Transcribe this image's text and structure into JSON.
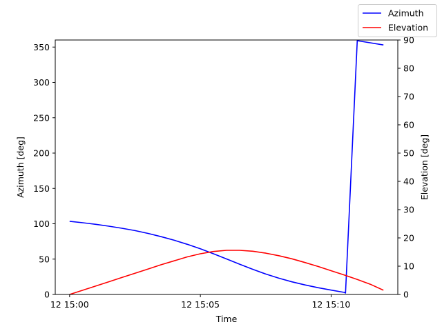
{
  "chart_data": {
    "type": "line",
    "xlabel": "Time",
    "ylabel_left": "Azimuth [deg]",
    "ylabel_right": "Elevation [deg]",
    "x_unit": "minutes after 15:00",
    "x_ticks": [
      {
        "value": 0,
        "label": "12 15:00"
      },
      {
        "value": 5,
        "label": "12 15:05"
      },
      {
        "value": 10,
        "label": "12 15:10"
      }
    ],
    "xlim": [
      -0.55,
      12.55
    ],
    "ylim_left": [
      0,
      360
    ],
    "ylim_right": [
      0,
      90
    ],
    "yticks_left": [
      0,
      50,
      100,
      150,
      200,
      250,
      300,
      350
    ],
    "yticks_right": [
      0,
      10,
      20,
      30,
      40,
      50,
      60,
      70,
      80,
      90
    ],
    "legend_position": "top-right",
    "grid": false,
    "series": [
      {
        "name": "Azimuth",
        "axis": "left",
        "color": "#0000ff",
        "points": [
          [
            0,
            103.5
          ],
          [
            0.5,
            101.5
          ],
          [
            1,
            99.2
          ],
          [
            1.5,
            96.6
          ],
          [
            2,
            93.7
          ],
          [
            2.5,
            90.3
          ],
          [
            3,
            86.3
          ],
          [
            3.5,
            81.8
          ],
          [
            4,
            76.7
          ],
          [
            4.5,
            70.9
          ],
          [
            5,
            64.6
          ],
          [
            5.5,
            57.6
          ],
          [
            6,
            50.2
          ],
          [
            6.5,
            42.8
          ],
          [
            7,
            35.6
          ],
          [
            7.5,
            28.9
          ],
          [
            8,
            23.0
          ],
          [
            8.5,
            17.9
          ],
          [
            9,
            13.5
          ],
          [
            9.5,
            9.6
          ],
          [
            10,
            6.1
          ],
          [
            10.5,
            2.9
          ],
          [
            10.55,
            2.0
          ],
          [
            11,
            359.0
          ],
          [
            12,
            353.0
          ]
        ]
      },
      {
        "name": "Elevation",
        "axis": "right",
        "color": "#ff0000",
        "points": [
          [
            0,
            0.0
          ],
          [
            0.5,
            1.5
          ],
          [
            1,
            3.0
          ],
          [
            1.5,
            4.5
          ],
          [
            2,
            6.0
          ],
          [
            2.5,
            7.5
          ],
          [
            3,
            9.0
          ],
          [
            3.5,
            10.5
          ],
          [
            4,
            11.9
          ],
          [
            4.5,
            13.3
          ],
          [
            5,
            14.4
          ],
          [
            5.5,
            15.2
          ],
          [
            6,
            15.6
          ],
          [
            6.5,
            15.6
          ],
          [
            7,
            15.3
          ],
          [
            7.5,
            14.6
          ],
          [
            8,
            13.7
          ],
          [
            8.5,
            12.6
          ],
          [
            9,
            11.3
          ],
          [
            9.5,
            9.9
          ],
          [
            10,
            8.4
          ],
          [
            10.5,
            6.9
          ],
          [
            11,
            5.3
          ],
          [
            11.5,
            3.6
          ],
          [
            12,
            1.5
          ]
        ]
      }
    ]
  }
}
